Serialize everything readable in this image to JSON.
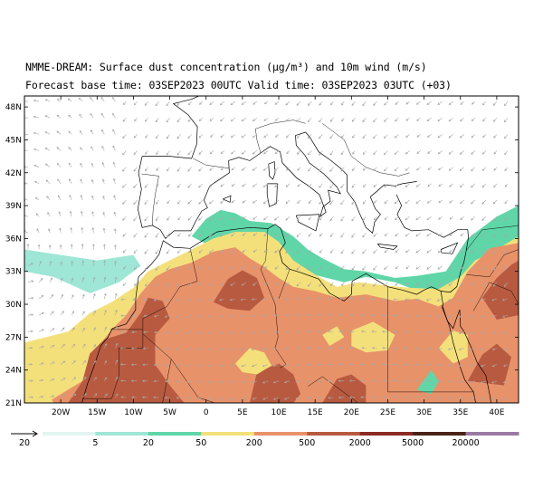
{
  "title": {
    "line1": "NMME-DREAM: Surface dust concentration (µg/m³) and 10m wind (m/s)",
    "line2": "Forecast base time: 03SEP2023 00UTC   Valid time: 03SEP2023 03UTC (+03)"
  },
  "map": {
    "lon_range": [
      -25,
      43
    ],
    "lat_range": [
      21,
      49
    ],
    "lat_ticks": [
      {
        "value": 48,
        "label": "48N"
      },
      {
        "value": 45,
        "label": "45N"
      },
      {
        "value": 42,
        "label": "42N"
      },
      {
        "value": 39,
        "label": "39N"
      },
      {
        "value": 36,
        "label": "36N"
      },
      {
        "value": 33,
        "label": "33N"
      },
      {
        "value": 30,
        "label": "30N"
      },
      {
        "value": 27,
        "label": "27N"
      },
      {
        "value": 24,
        "label": "24N"
      },
      {
        "value": 21,
        "label": "21N"
      }
    ],
    "lon_ticks": [
      {
        "value": -20,
        "label": "20W"
      },
      {
        "value": -15,
        "label": "15W"
      },
      {
        "value": -10,
        "label": "10W"
      },
      {
        "value": -5,
        "label": "5W"
      },
      {
        "value": 0,
        "label": "0"
      },
      {
        "value": 5,
        "label": "5E"
      },
      {
        "value": 10,
        "label": "10E"
      },
      {
        "value": 15,
        "label": "15E"
      },
      {
        "value": 20,
        "label": "20E"
      },
      {
        "value": 25,
        "label": "25E"
      },
      {
        "value": 30,
        "label": "30E"
      },
      {
        "value": 35,
        "label": "35E"
      },
      {
        "value": 40,
        "label": "40E"
      }
    ],
    "colors": {
      "sea": "#ffffff",
      "land": "#ffffff",
      "coast": "#000000",
      "wind_arrow": "#a8a8a8"
    }
  },
  "legend": {
    "wind_reference": {
      "label": "20",
      "value": 20,
      "unit": "m/s"
    },
    "levels": [
      {
        "label": "5",
        "color": "#e3f5f1"
      },
      {
        "label": "20",
        "color": "#9ee6d6"
      },
      {
        "label": "50",
        "color": "#60d6a8"
      },
      {
        "label": "200",
        "color": "#f4e07a"
      },
      {
        "label": "500",
        "color": "#e8926a"
      },
      {
        "label": "2000",
        "color": "#b85a40"
      },
      {
        "label": "5000",
        "color": "#8c2a24"
      },
      {
        "label": "20000",
        "color": "#4a2418"
      }
    ],
    "last_color": "#9a7aa2"
  }
}
